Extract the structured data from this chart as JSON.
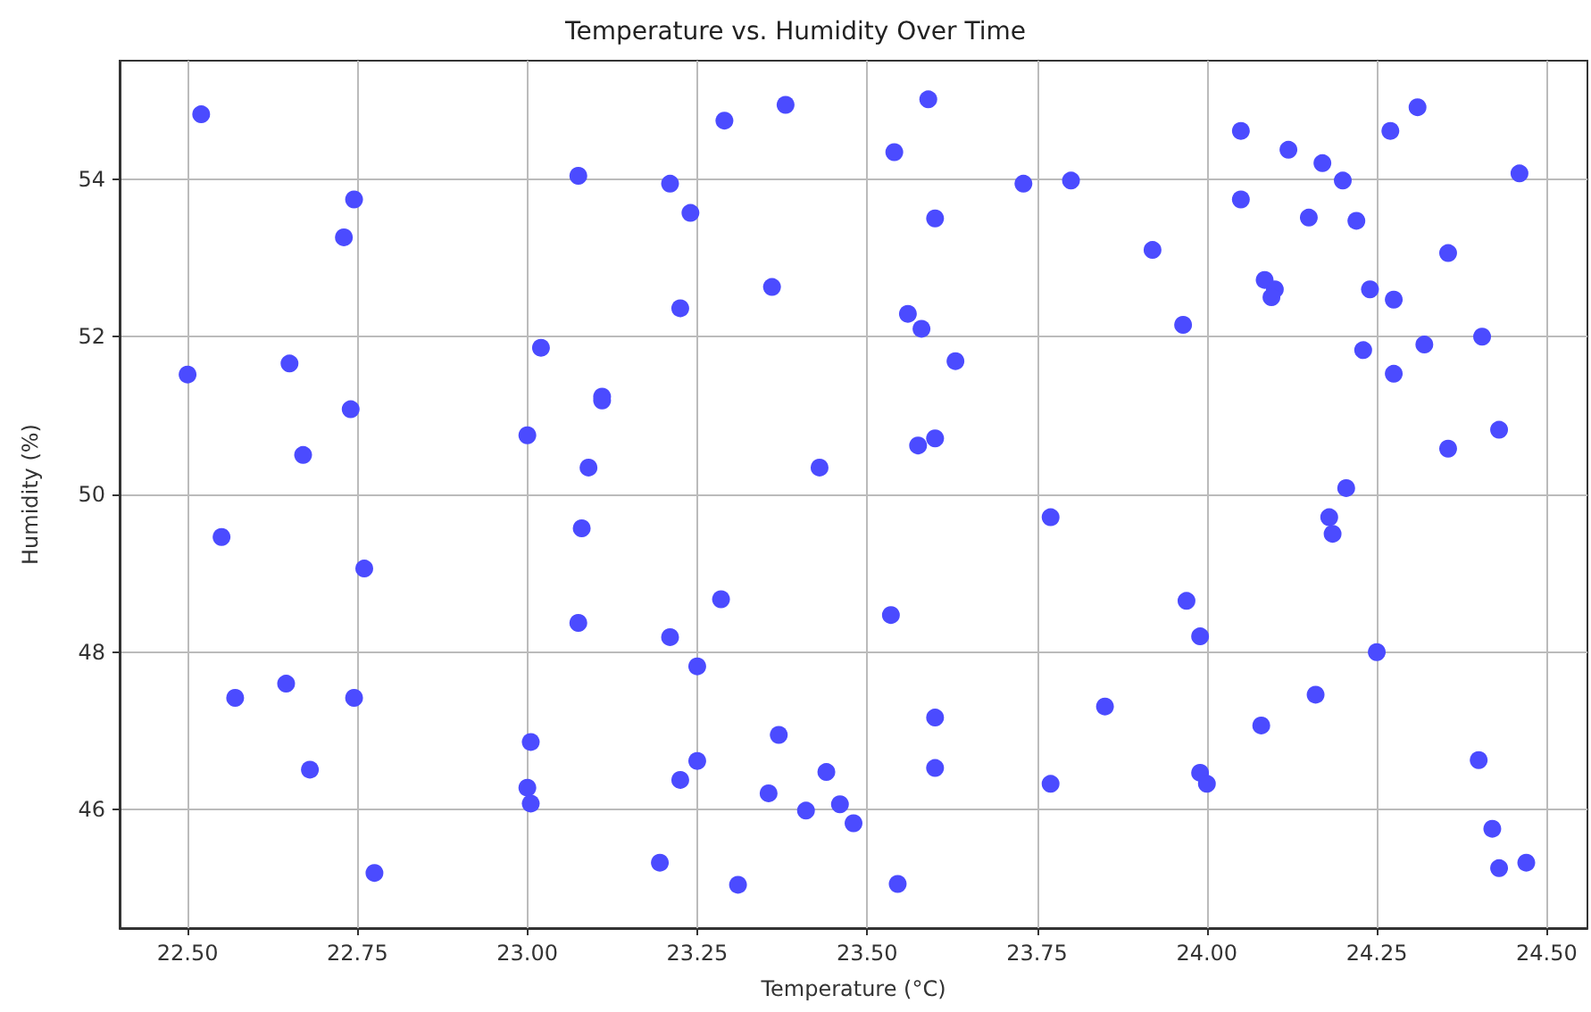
{
  "chart_data": {
    "type": "scatter",
    "title": "Temperature vs. Humidity Over Time",
    "xlabel": "Temperature (°C)",
    "ylabel": "Humidity (%)",
    "x": [
      22.52,
      22.5,
      22.55,
      22.57,
      22.65,
      22.67,
      22.645,
      22.68,
      22.745,
      22.73,
      22.74,
      22.745,
      22.76,
      22.775,
      23.075,
      23.02,
      23.0,
      23.09,
      23.08,
      23.075,
      23.005,
      23.0,
      23.005,
      23.11,
      23.11,
      23.21,
      23.24,
      23.225,
      23.29,
      23.38,
      23.36,
      23.21,
      23.285,
      23.25,
      23.225,
      23.25,
      23.37,
      23.355,
      23.195,
      23.31,
      23.41,
      23.44,
      23.43,
      23.46,
      23.48,
      23.54,
      23.59,
      23.535,
      23.545,
      23.56,
      23.58,
      23.6,
      23.575,
      23.6,
      23.6,
      23.6,
      23.63,
      23.77,
      23.77,
      23.73,
      23.8,
      23.85,
      23.92,
      23.965,
      23.97,
      23.99,
      23.99,
      24.0,
      24.05,
      24.12,
      24.17,
      24.2,
      24.27,
      24.31,
      24.46,
      24.05,
      24.15,
      24.22,
      24.355,
      24.085,
      24.1,
      24.095,
      24.24,
      24.275,
      24.23,
      24.275,
      24.32,
      24.405,
      24.43,
      24.355,
      24.205,
      24.18,
      24.185,
      24.25,
      24.16,
      24.08,
      24.4,
      24.42,
      24.43,
      24.47
    ],
    "series": [
      {
        "color": "#4b4bff",
        "values": [
          54.82,
          51.52,
          49.46,
          47.42,
          51.66,
          50.5,
          47.6,
          46.51,
          53.74,
          53.26,
          51.08,
          47.42,
          49.06,
          45.2,
          54.04,
          51.86,
          50.75,
          50.34,
          49.57,
          48.37,
          46.86,
          46.28,
          46.08,
          51.24,
          51.19,
          53.94,
          53.57,
          52.36,
          54.74,
          54.94,
          52.63,
          48.19,
          48.67,
          47.82,
          46.38,
          46.62,
          46.95,
          46.21,
          45.33,
          45.05,
          45.99,
          46.48,
          50.34,
          46.07,
          45.83,
          54.34,
          55.01,
          48.47,
          45.06,
          52.29,
          52.1,
          53.5,
          50.62,
          50.71,
          47.17,
          46.53,
          51.69,
          49.71,
          46.33,
          53.94,
          53.98,
          47.31,
          53.1,
          52.15,
          48.65,
          48.2,
          46.47,
          46.33,
          54.61,
          54.37,
          54.2,
          53.98,
          54.61,
          54.91,
          54.07,
          53.74,
          53.51,
          53.47,
          53.06,
          52.72,
          52.6,
          52.5,
          52.6,
          52.47,
          51.83,
          51.53,
          51.9,
          52.0,
          50.82,
          50.58,
          50.08,
          49.71,
          49.5,
          48.0,
          47.46,
          47.07,
          46.63,
          45.76,
          45.26,
          45.33
        ]
      }
    ],
    "xlim": [
      22.4,
      24.56
    ],
    "ylim": [
      44.5,
      55.5
    ],
    "xticks": [
      {
        "value": 22.5,
        "label": "22.50"
      },
      {
        "value": 22.75,
        "label": "22.75"
      },
      {
        "value": 23,
        "label": "23.00"
      },
      {
        "value": 23.25,
        "label": "23.25"
      },
      {
        "value": 23.5,
        "label": "23.50"
      },
      {
        "value": 23.75,
        "label": "23.75"
      },
      {
        "value": 24,
        "label": "24.00"
      },
      {
        "value": 24.25,
        "label": "24.25"
      },
      {
        "value": 24.5,
        "label": "24.50"
      }
    ],
    "yticks": [
      46,
      48,
      50,
      52,
      54
    ],
    "grid": true,
    "marker": "circle"
  }
}
